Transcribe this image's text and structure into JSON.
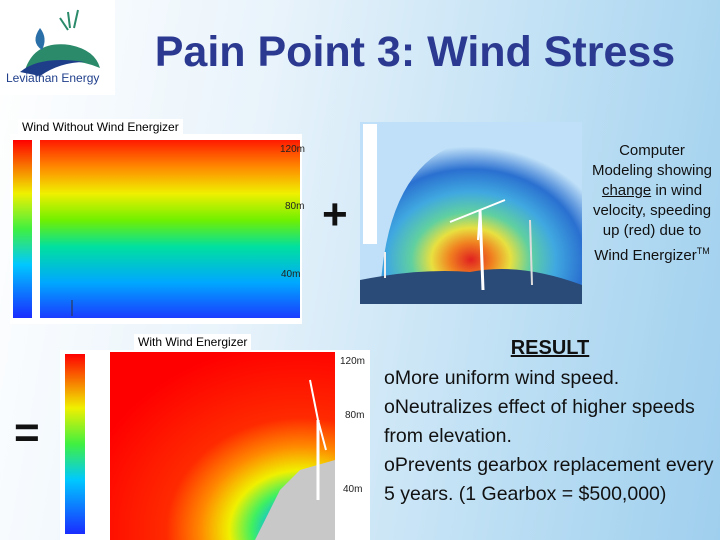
{
  "logo": {
    "text": "Leviathan Energy"
  },
  "title": "Pain Point 3: Wind Stress",
  "without_panel": {
    "label": "Wind Without Wind Energizer",
    "heights": [
      "120m",
      "80m",
      "40m"
    ]
  },
  "plus": "+",
  "equals": "=",
  "caption": {
    "before": "Computer Modeling showing ",
    "emphasis": "change",
    "after": " in wind velocity, speeding up (red) due to Wind Energizer",
    "superscript": "TM"
  },
  "with_panel": {
    "label": "With Wind Energizer",
    "heights": [
      "120m",
      "80m",
      "40m"
    ]
  },
  "result": {
    "heading": "RESULT",
    "bullets": [
      "oMore uniform wind speed.",
      "oNeutralizes effect of higher speeds from elevation.",
      "oPrevents gearbox replacement every 5 years. (1 Gearbox = $500,000)"
    ]
  }
}
